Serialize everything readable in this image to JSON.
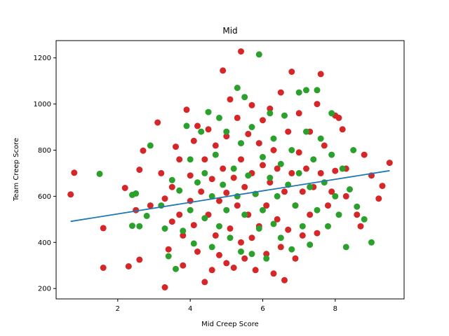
{
  "chart_data": {
    "type": "scatter",
    "title": "Mid",
    "xlabel": "Mid Creep Score",
    "ylabel": "Team Creep Score",
    "xlim": [
      0.3,
      9.9
    ],
    "ylim": [
      155,
      1275
    ],
    "xticks": [
      2,
      4,
      6,
      8
    ],
    "yticks": [
      200,
      400,
      600,
      800,
      1000,
      1200
    ],
    "grid": false,
    "colors": {
      "series_a": "#d62728",
      "series_b": "#2ca02c",
      "trend": "#1f77b4"
    },
    "series": [
      {
        "color": "#d62728",
        "points": [
          [
            0.7,
            608
          ],
          [
            0.8,
            702
          ],
          [
            1.6,
            462
          ],
          [
            1.6,
            290
          ],
          [
            2.2,
            636
          ],
          [
            2.3,
            296
          ],
          [
            2.5,
            540
          ],
          [
            2.6,
            715
          ],
          [
            2.6,
            325
          ],
          [
            2.7,
            798
          ],
          [
            2.9,
            560
          ],
          [
            3.1,
            920
          ],
          [
            3.2,
            700
          ],
          [
            3.3,
            205
          ],
          [
            3.3,
            590
          ],
          [
            3.4,
            370
          ],
          [
            3.5,
            640
          ],
          [
            3.5,
            490
          ],
          [
            3.6,
            815
          ],
          [
            3.7,
            760
          ],
          [
            3.7,
            520
          ],
          [
            3.8,
            300
          ],
          [
            3.8,
            430
          ],
          [
            3.9,
            975
          ],
          [
            4.0,
            690
          ],
          [
            4.0,
            580
          ],
          [
            4.1,
            840
          ],
          [
            4.1,
            475
          ],
          [
            4.2,
            360
          ],
          [
            4.2,
            905
          ],
          [
            4.3,
            620
          ],
          [
            4.4,
            228
          ],
          [
            4.4,
            760
          ],
          [
            4.5,
            520
          ],
          [
            4.5,
            890
          ],
          [
            4.6,
            280
          ],
          [
            4.6,
            675
          ],
          [
            4.7,
            430
          ],
          [
            4.7,
            820
          ],
          [
            4.8,
            580
          ],
          [
            4.8,
            345
          ],
          [
            4.9,
            1145
          ],
          [
            4.9,
            720
          ],
          [
            5.0,
            310
          ],
          [
            5.0,
            615
          ],
          [
            5.0,
            860
          ],
          [
            5.1,
            1020
          ],
          [
            5.1,
            460
          ],
          [
            5.2,
            680
          ],
          [
            5.2,
            290
          ],
          [
            5.3,
            940
          ],
          [
            5.3,
            560
          ],
          [
            5.4,
            1228
          ],
          [
            5.4,
            400
          ],
          [
            5.4,
            760
          ],
          [
            5.5,
            640
          ],
          [
            5.5,
            330
          ],
          [
            5.6,
            870
          ],
          [
            5.6,
            520
          ],
          [
            5.7,
            995
          ],
          [
            5.7,
            420
          ],
          [
            5.7,
            700
          ],
          [
            5.8,
            610
          ],
          [
            5.8,
            280
          ],
          [
            5.9,
            830
          ],
          [
            5.9,
            470
          ],
          [
            6.0,
            735
          ],
          [
            6.0,
            930
          ],
          [
            6.1,
            560
          ],
          [
            6.1,
            350
          ],
          [
            6.2,
            980
          ],
          [
            6.2,
            660
          ],
          [
            6.3,
            265
          ],
          [
            6.3,
            800
          ],
          [
            6.4,
            500
          ],
          [
            6.4,
            720
          ],
          [
            6.5,
            1050
          ],
          [
            6.5,
            380
          ],
          [
            6.6,
            236
          ],
          [
            6.6,
            620
          ],
          [
            6.7,
            880
          ],
          [
            6.7,
            455
          ],
          [
            6.8,
            1140
          ],
          [
            6.8,
            700
          ],
          [
            6.9,
            560
          ],
          [
            6.9,
            330
          ],
          [
            7.0,
            790
          ],
          [
            7.0,
            960
          ],
          [
            7.1,
            620
          ],
          [
            7.1,
            430
          ],
          [
            7.2,
            720
          ],
          [
            7.3,
            880
          ],
          [
            7.3,
            520
          ],
          [
            7.4,
            640
          ],
          [
            7.5,
            1000
          ],
          [
            7.5,
            440
          ],
          [
            7.6,
            1130
          ],
          [
            7.6,
            700
          ],
          [
            7.7,
            820
          ],
          [
            7.8,
            560
          ],
          [
            7.9,
            620
          ],
          [
            8.0,
            950
          ],
          [
            8.0,
            710
          ],
          [
            8.1,
            940
          ],
          [
            8.2,
            890
          ],
          [
            8.3,
            600
          ],
          [
            8.3,
            720
          ],
          [
            8.6,
            520
          ],
          [
            8.7,
            470
          ],
          [
            8.8,
            780
          ],
          [
            9.0,
            690
          ],
          [
            9.2,
            590
          ],
          [
            9.3,
            645
          ],
          [
            9.5,
            745
          ]
        ]
      },
      {
        "color": "#2ca02c",
        "points": [
          [
            1.5,
            697
          ],
          [
            2.4,
            606
          ],
          [
            2.4,
            472
          ],
          [
            2.5,
            612
          ],
          [
            2.6,
            470
          ],
          [
            2.8,
            515
          ],
          [
            2.9,
            820
          ],
          [
            3.2,
            560
          ],
          [
            3.3,
            460
          ],
          [
            3.4,
            340
          ],
          [
            3.5,
            670
          ],
          [
            3.6,
            285
          ],
          [
            3.7,
            625
          ],
          [
            3.8,
            450
          ],
          [
            3.9,
            905
          ],
          [
            4.0,
            540
          ],
          [
            4.0,
            760
          ],
          [
            4.1,
            395
          ],
          [
            4.2,
            660
          ],
          [
            4.3,
            880
          ],
          [
            4.4,
            505
          ],
          [
            4.4,
            700
          ],
          [
            4.5,
            965
          ],
          [
            4.6,
            380
          ],
          [
            4.6,
            600
          ],
          [
            4.7,
            780
          ],
          [
            4.8,
            470
          ],
          [
            4.8,
            940
          ],
          [
            4.9,
            650
          ],
          [
            5.0,
            540
          ],
          [
            5.0,
            880
          ],
          [
            5.1,
            420
          ],
          [
            5.2,
            720
          ],
          [
            5.3,
            1070
          ],
          [
            5.3,
            600
          ],
          [
            5.4,
            360
          ],
          [
            5.4,
            830
          ],
          [
            5.5,
            1030
          ],
          [
            5.5,
            520
          ],
          [
            5.6,
            690
          ],
          [
            5.7,
            350
          ],
          [
            5.7,
            900
          ],
          [
            5.8,
            610
          ],
          [
            5.9,
            1215
          ],
          [
            5.9,
            460
          ],
          [
            6.0,
            770
          ],
          [
            6.0,
            540
          ],
          [
            6.1,
            330
          ],
          [
            6.2,
            960
          ],
          [
            6.2,
            680
          ],
          [
            6.3,
            480
          ],
          [
            6.3,
            850
          ],
          [
            6.4,
            600
          ],
          [
            6.5,
            740
          ],
          [
            6.5,
            420
          ],
          [
            6.6,
            950
          ],
          [
            6.7,
            650
          ],
          [
            6.8,
            370
          ],
          [
            6.8,
            800
          ],
          [
            6.9,
            560
          ],
          [
            7.0,
            1050
          ],
          [
            7.0,
            700
          ],
          [
            7.1,
            470
          ],
          [
            7.2,
            880
          ],
          [
            7.2,
            1060
          ],
          [
            7.3,
            390
          ],
          [
            7.3,
            640
          ],
          [
            7.4,
            760
          ],
          [
            7.5,
            1060
          ],
          [
            7.5,
            540
          ],
          [
            7.6,
            850
          ],
          [
            7.7,
            660
          ],
          [
            7.8,
            470
          ],
          [
            7.9,
            780
          ],
          [
            7.9,
            960
          ],
          [
            8.0,
            600
          ],
          [
            8.1,
            520
          ],
          [
            8.2,
            720
          ],
          [
            8.3,
            380
          ],
          [
            8.4,
            630
          ],
          [
            8.5,
            800
          ],
          [
            8.6,
            555
          ],
          [
            8.8,
            500
          ],
          [
            9.0,
            400
          ]
        ]
      }
    ],
    "trendline": {
      "x": [
        0.7,
        9.5
      ],
      "y": [
        491,
        711
      ]
    }
  }
}
